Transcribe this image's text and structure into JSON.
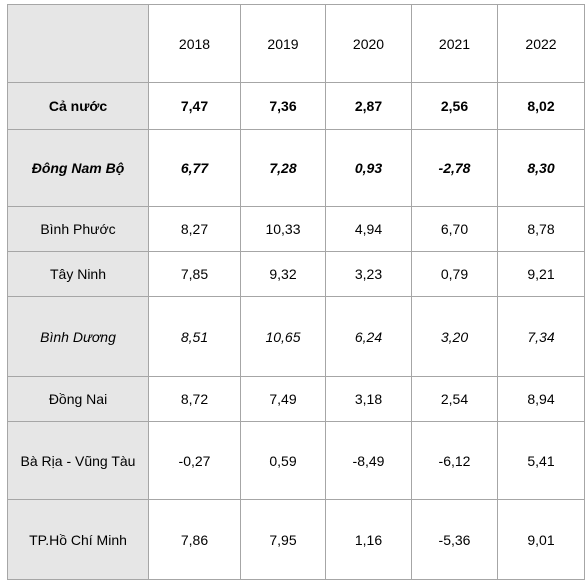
{
  "table": {
    "header": [
      "2018",
      "2019",
      "2020",
      "2021",
      "2022"
    ],
    "rows": [
      {
        "label": "Cả nước",
        "values": [
          "7,47",
          "7,36",
          "2,87",
          "2,56",
          "8,02"
        ]
      },
      {
        "label": "Đông Nam Bộ",
        "values": [
          "6,77",
          "7,28",
          "0,93",
          "-2,78",
          "8,30"
        ]
      },
      {
        "label": "Bình Phước",
        "values": [
          "8,27",
          "10,33",
          "4,94",
          "6,70",
          "8,78"
        ]
      },
      {
        "label": "Tây Ninh",
        "values": [
          "7,85",
          "9,32",
          "3,23",
          "0,79",
          "9,21"
        ]
      },
      {
        "label": "Bình Dương",
        "values": [
          "8,51",
          "10,65",
          "6,24",
          "3,20",
          "7,34"
        ]
      },
      {
        "label": "Đồng Nai",
        "values": [
          "8,72",
          "7,49",
          "3,18",
          "2,54",
          "8,94"
        ]
      },
      {
        "label": "Bà Rịa - Vũng Tàu",
        "values": [
          "-0,27",
          "0,59",
          "-8,49",
          "-6,12",
          "5,41"
        ]
      },
      {
        "label": "TP.Hồ Chí Minh",
        "values": [
          "7,86",
          "7,95",
          "1,16",
          "-5,36",
          "9,01"
        ]
      }
    ]
  }
}
